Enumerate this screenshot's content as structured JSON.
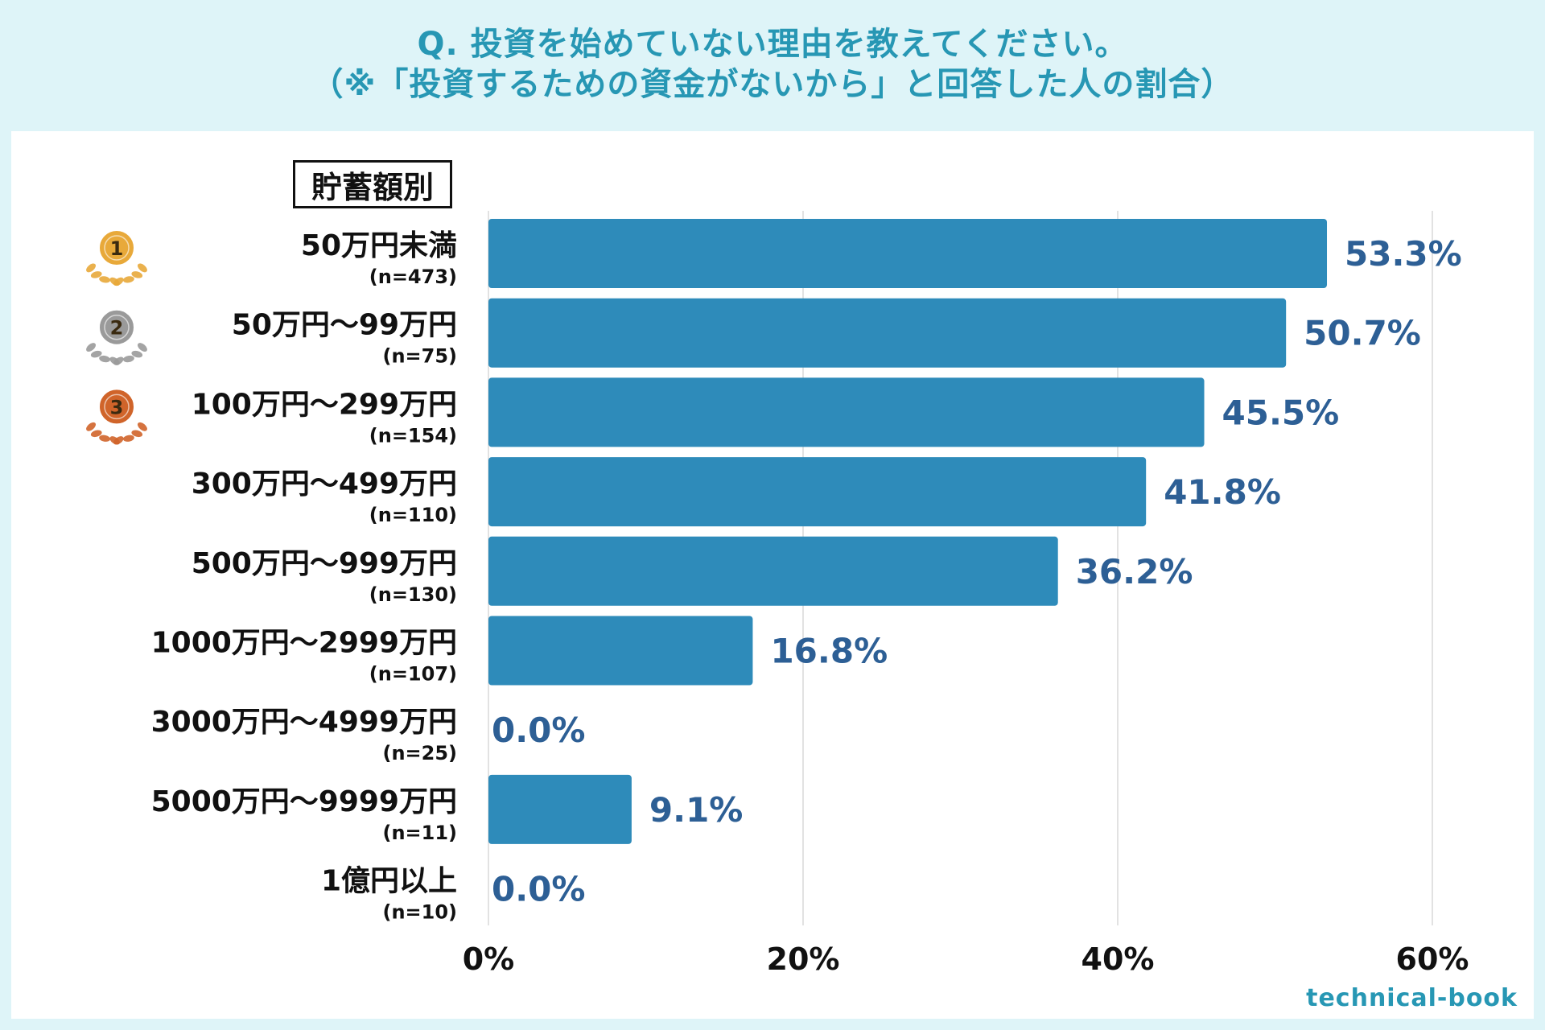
{
  "title": {
    "line1": "Q. 投資を始めていない理由を教えてください。",
    "line2": "（※「投資するための資金がないから」と回答した人の割合）"
  },
  "group_label": "貯蓄額別",
  "watermark": "technical-book",
  "colors": {
    "bar": "#2e8bba",
    "value_text": "#2d5f95",
    "title": "#2797b4",
    "grid": "#d9d9d9",
    "gold": "#e8a93a",
    "silver": "#9a9a9a",
    "bronze": "#d0642a"
  },
  "chart_data": {
    "type": "bar",
    "orientation": "horizontal",
    "categories": [
      "50万円未満",
      "50万円～99万円",
      "100万円～299万円",
      "300万円～499万円",
      "500万円～999万円",
      "1000万円～2999万円",
      "3000万円～4999万円",
      "5000万円～9999万円",
      "1億円以上"
    ],
    "sample_sizes": [
      "(n=473)",
      "(n=75)",
      "(n=154)",
      "(n=110)",
      "(n=130)",
      "(n=107)",
      "(n=25)",
      "(n=11)",
      "(n=10)"
    ],
    "values": [
      53.3,
      50.7,
      45.5,
      41.8,
      36.2,
      16.8,
      0.0,
      9.1,
      0.0
    ],
    "value_labels": [
      "53.3%",
      "50.7%",
      "45.5%",
      "41.8%",
      "36.2%",
      "16.8%",
      "0.0%",
      "9.1%",
      "0.0%"
    ],
    "rank_badges": [
      "1",
      "2",
      "3"
    ],
    "xlim": [
      0,
      60
    ],
    "xticks": [
      0,
      20,
      40,
      60
    ],
    "xtick_labels": [
      "0%",
      "20%",
      "40%",
      "60%"
    ],
    "grid": true
  }
}
